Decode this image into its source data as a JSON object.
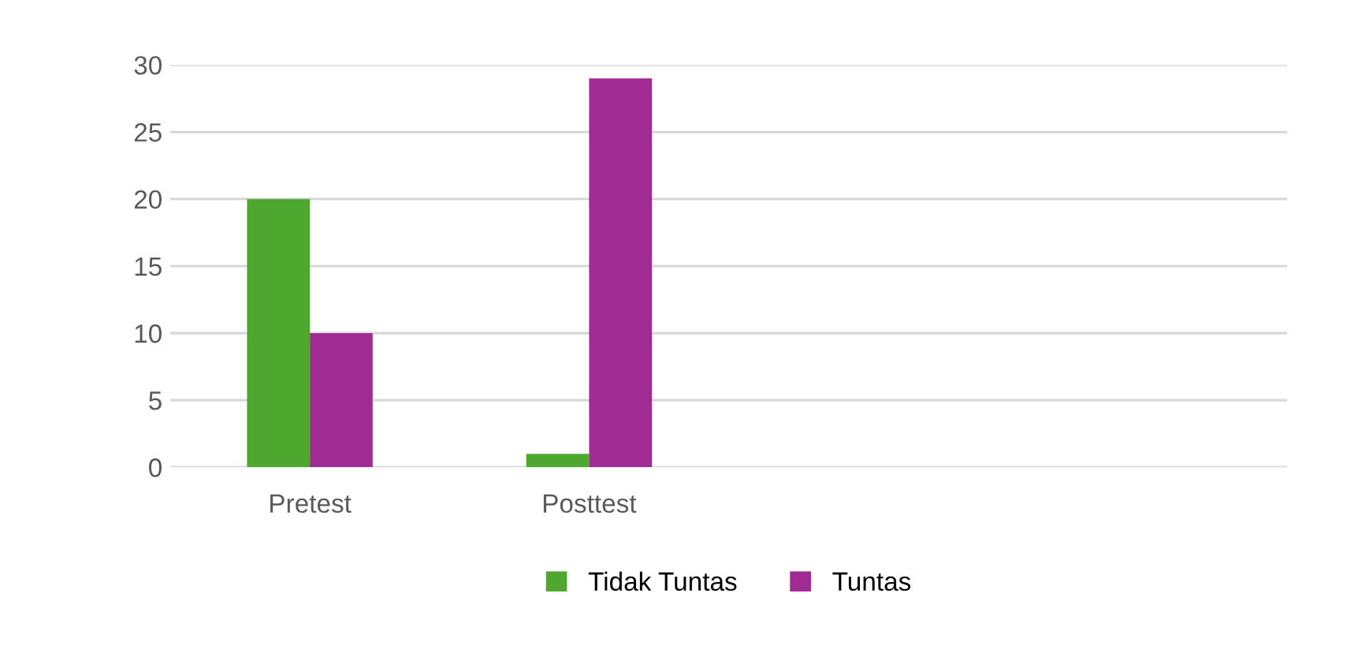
{
  "chart_data": {
    "type": "bar",
    "categories": [
      "Pretest",
      "Posttest",
      null,
      null
    ],
    "series": [
      {
        "name": "Tidak Tuntas",
        "color": "#4ea72e",
        "values": [
          20,
          1,
          null,
          null
        ]
      },
      {
        "name": "Tuntas",
        "color": "#a02b93",
        "values": [
          10,
          29,
          null,
          null
        ]
      }
    ],
    "ylim": [
      0,
      30
    ],
    "yticks": [
      0,
      5,
      10,
      15,
      20,
      25,
      30
    ],
    "grid": "y",
    "legend": "bottom"
  }
}
